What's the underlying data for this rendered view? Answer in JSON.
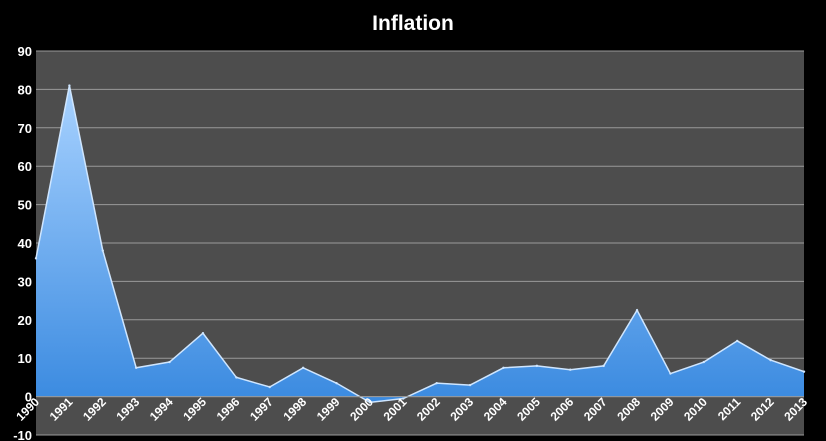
{
  "chart_data": {
    "type": "area",
    "title": "Inflation",
    "xlabel": "",
    "ylabel": "",
    "categories": [
      "1990",
      "1991",
      "1992",
      "1993",
      "1994",
      "1995",
      "1996",
      "1997",
      "1998",
      "1999",
      "2000",
      "2001",
      "2002",
      "2003",
      "2004",
      "2005",
      "2006",
      "2007",
      "2008",
      "2009",
      "2010",
      "2011",
      "2012",
      "2013"
    ],
    "values": [
      36,
      81,
      38,
      7.5,
      9,
      16.5,
      5,
      2.5,
      7.5,
      3.5,
      -1.5,
      -0.5,
      3.5,
      3,
      7.5,
      8,
      7,
      8,
      22.5,
      6,
      9,
      14.5,
      9.5,
      6.5
    ],
    "y_ticks": [
      "-10",
      "0",
      "10",
      "20",
      "30",
      "40",
      "50",
      "60",
      "70",
      "80",
      "90"
    ],
    "ylim": [
      -10,
      90
    ],
    "grid": true,
    "legend": "none",
    "colors": {
      "background": "#000000",
      "plot_area": "#4d4d4d",
      "gridline": "#9a9a9a",
      "area_top": "#a8d2ff",
      "area_bottom": "#3a8ae0",
      "area_edge": "#cfe6ff",
      "text": "#ffffff"
    }
  }
}
